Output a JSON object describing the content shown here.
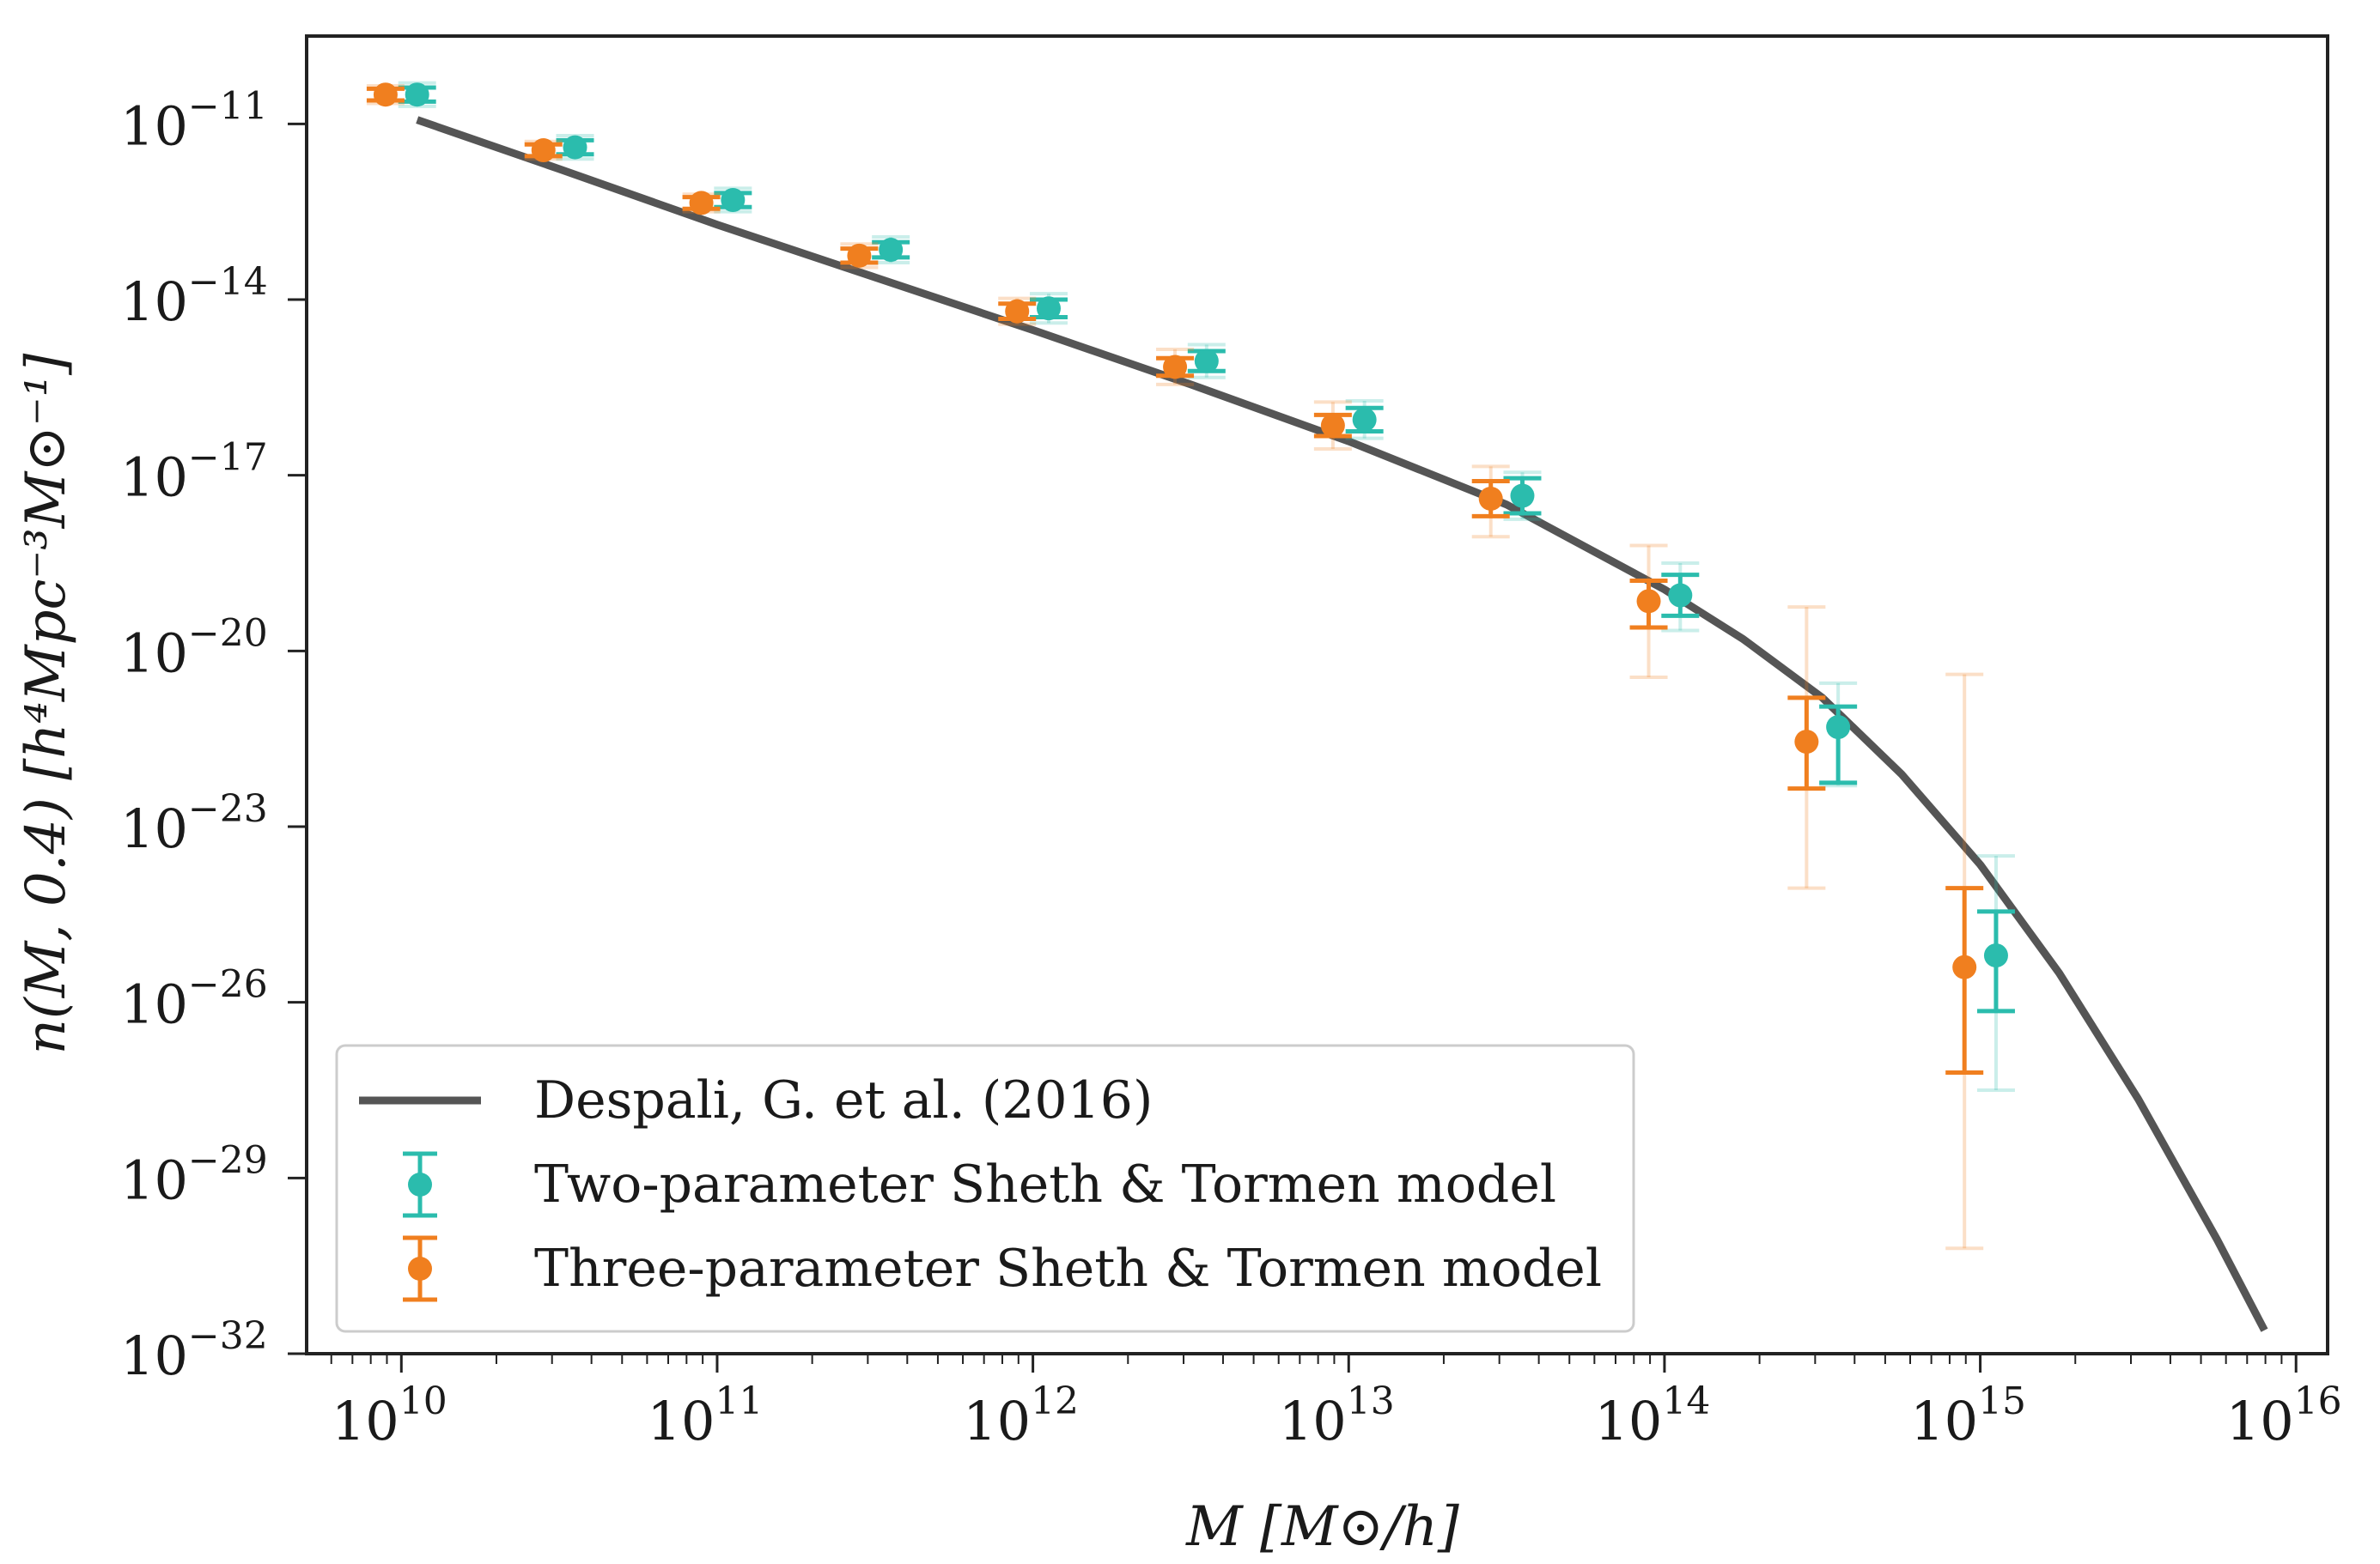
{
  "chart_data": {
    "type": "scatter",
    "x_scale": "log",
    "y_scale": "log",
    "xlim_log10": [
      9.7,
      16.1
    ],
    "ylim_log10": [
      -32,
      -9.5
    ],
    "x_ticks": [
      {
        "base": "10",
        "exp": "10",
        "log": 10
      },
      {
        "base": "10",
        "exp": "11",
        "log": 11
      },
      {
        "base": "10",
        "exp": "12",
        "log": 12
      },
      {
        "base": "10",
        "exp": "13",
        "log": 13
      },
      {
        "base": "10",
        "exp": "14",
        "log": 14
      },
      {
        "base": "10",
        "exp": "15",
        "log": 15
      },
      {
        "base": "10",
        "exp": "16",
        "log": 16
      }
    ],
    "y_ticks": [
      {
        "base": "10",
        "exp": "−11",
        "log": -11
      },
      {
        "base": "10",
        "exp": "−14",
        "log": -14
      },
      {
        "base": "10",
        "exp": "−17",
        "log": -17
      },
      {
        "base": "10",
        "exp": "−20",
        "log": -20
      },
      {
        "base": "10",
        "exp": "−23",
        "log": -23
      },
      {
        "base": "10",
        "exp": "−26",
        "log": -26
      },
      {
        "base": "10",
        "exp": "−29",
        "log": -29
      },
      {
        "base": "10",
        "exp": "−32",
        "log": -32
      }
    ],
    "xlabel": "M  [M⊙/h]",
    "ylabel": "n(M, 0.4)  [h⁴Mpc⁻³M⊙⁻¹]",
    "legend_position": "lower-left",
    "series": [
      {
        "name": "Despali, G. et al. (2016)",
        "kind": "line",
        "color": "#555555",
        "log_x": [
          10.05,
          10.5,
          11.0,
          11.5,
          12.0,
          12.5,
          13.0,
          13.5,
          14.0,
          14.25,
          14.5,
          14.75,
          15.0,
          15.25,
          15.5,
          15.75,
          15.9
        ],
        "log_y": [
          -10.93,
          -11.77,
          -12.72,
          -13.62,
          -14.52,
          -15.45,
          -16.42,
          -17.5,
          -18.95,
          -19.8,
          -20.8,
          -22.1,
          -23.65,
          -25.5,
          -27.65,
          -30.05,
          -31.6
        ]
      },
      {
        "name": "Two-parameter Sheth & Tormen model",
        "kind": "errorbar",
        "color": "#2bbcad",
        "log_x": [
          10.05,
          10.55,
          11.05,
          11.55,
          12.05,
          12.55,
          13.05,
          13.55,
          14.05,
          14.55,
          15.05
        ],
        "log_y": [
          -10.5,
          -11.4,
          -12.3,
          -13.15,
          -14.15,
          -15.05,
          -16.05,
          -17.35,
          -19.05,
          -21.3,
          -25.2
        ],
        "err_low_log": [
          0.12,
          0.12,
          0.12,
          0.13,
          0.15,
          0.17,
          0.2,
          0.3,
          0.35,
          0.95,
          0.95
        ],
        "err_high_log": [
          0.12,
          0.12,
          0.12,
          0.13,
          0.15,
          0.17,
          0.2,
          0.3,
          0.35,
          0.35,
          0.75
        ],
        "err_low_log_outer": [
          0.2,
          0.2,
          0.2,
          0.22,
          0.25,
          0.28,
          0.32,
          0.4,
          0.6,
          1.0,
          2.3
        ],
        "err_high_log_outer": [
          0.2,
          0.2,
          0.2,
          0.22,
          0.25,
          0.28,
          0.32,
          0.4,
          0.55,
          0.75,
          1.7
        ]
      },
      {
        "name": "Three-parameter Sheth & Tormen model",
        "kind": "errorbar",
        "color": "#f07f1f",
        "log_x": [
          9.95,
          10.45,
          10.95,
          11.45,
          11.95,
          12.45,
          12.95,
          13.45,
          13.95,
          14.45,
          14.95
        ],
        "log_y": [
          -10.5,
          -11.45,
          -12.35,
          -13.25,
          -14.2,
          -15.15,
          -16.15,
          -17.4,
          -19.15,
          -21.55,
          -25.4
        ],
        "err_low_log": [
          0.1,
          0.1,
          0.1,
          0.12,
          0.13,
          0.15,
          0.18,
          0.3,
          0.45,
          0.8,
          1.8
        ],
        "err_high_log": [
          0.1,
          0.1,
          0.1,
          0.12,
          0.13,
          0.15,
          0.18,
          0.3,
          0.35,
          0.75,
          1.35
        ],
        "err_low_log_outer": [
          0.15,
          0.15,
          0.15,
          0.2,
          0.22,
          0.3,
          0.4,
          0.65,
          1.3,
          2.5,
          4.8
        ],
        "err_high_log_outer": [
          0.15,
          0.15,
          0.15,
          0.2,
          0.22,
          0.3,
          0.4,
          0.55,
          0.95,
          2.3,
          5.0
        ]
      }
    ]
  }
}
